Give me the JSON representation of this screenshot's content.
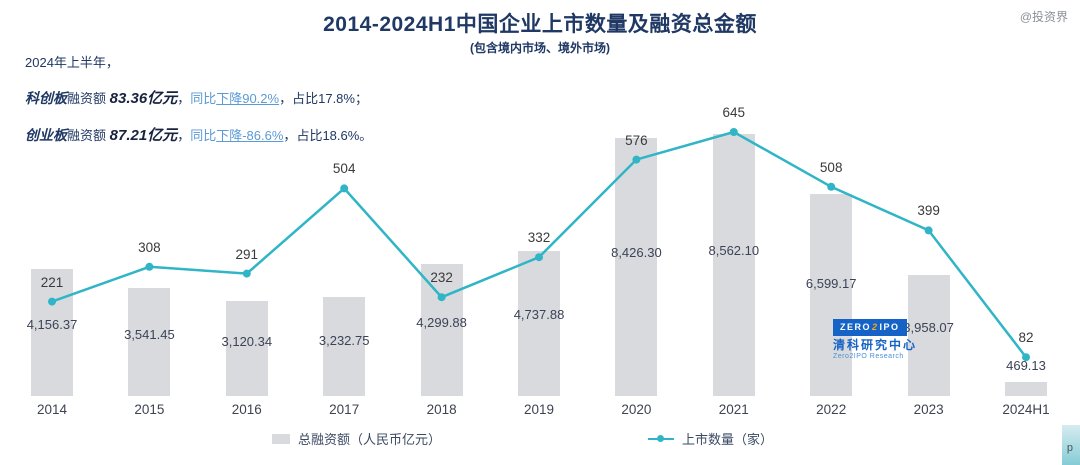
{
  "watermark": "@投资界",
  "header": {
    "title": "2014-2024H1中国企业上市数量及融资总金额",
    "subtitle": "(包含境内市场、境外市场)"
  },
  "annotation": {
    "intro": "2024年上半年，",
    "lines": [
      {
        "board": "科创板",
        "label": "融资额",
        "amount": "83.36亿元",
        "c1": "，",
        "yoy": "同比",
        "decline": "下降90.2%",
        "c2": "，",
        "share": "占比17.8%；"
      },
      {
        "board": "创业板",
        "label": "融资额",
        "amount": "87.21亿元",
        "c1": "，",
        "yoy": "同比",
        "decline": "下降-86.6%",
        "c2": "，",
        "share": "占比18.6%。"
      }
    ]
  },
  "legend": {
    "bar_label": "总融资额（人民币亿元）",
    "line_label": "上市数量（家）"
  },
  "logo": {
    "zero": "ZERO",
    "two": "2",
    "ipo": "IPO",
    "cn": "清科研究中心",
    "en": "Zero2IPO Research"
  },
  "corner_fragment": "p",
  "colors": {
    "navy": "#1f3864",
    "light_blue": "#5b9bd5",
    "teal": "#2fb5c6",
    "bar_gray": "#d9dade"
  },
  "chart_data": {
    "type": "combo (bar + line)",
    "title": "2014-2024H1中国企业上市数量及融资总金额",
    "subtitle": "(包含境内市场、境外市场)",
    "categories": [
      "2014",
      "2015",
      "2016",
      "2017",
      "2018",
      "2019",
      "2020",
      "2021",
      "2022",
      "2023",
      "2024H1"
    ],
    "series": [
      {
        "name": "总融资额（人民币亿元）",
        "type": "bar",
        "color": "#d9dade",
        "values": [
          4156.37,
          3541.45,
          3120.34,
          3232.75,
          4299.88,
          4737.88,
          8426.3,
          8562.1,
          6599.17,
          3958.07,
          469.13
        ],
        "labels": [
          "4,156.37",
          "3,541.45",
          "3,120.34",
          "3,232.75",
          "4,299.88",
          "4,737.88",
          "8,426.30",
          "8,562.10",
          "6,599.17",
          "3,958.07",
          "469.13"
        ]
      },
      {
        "name": "上市数量（家）",
        "type": "line",
        "color": "#2fb5c6",
        "values": [
          221,
          308,
          291,
          504,
          232,
          332,
          576,
          645,
          508,
          399,
          82
        ]
      }
    ],
    "grid": false,
    "value_axis_visible": false,
    "data_labels": true,
    "legend_position": "bottom"
  }
}
